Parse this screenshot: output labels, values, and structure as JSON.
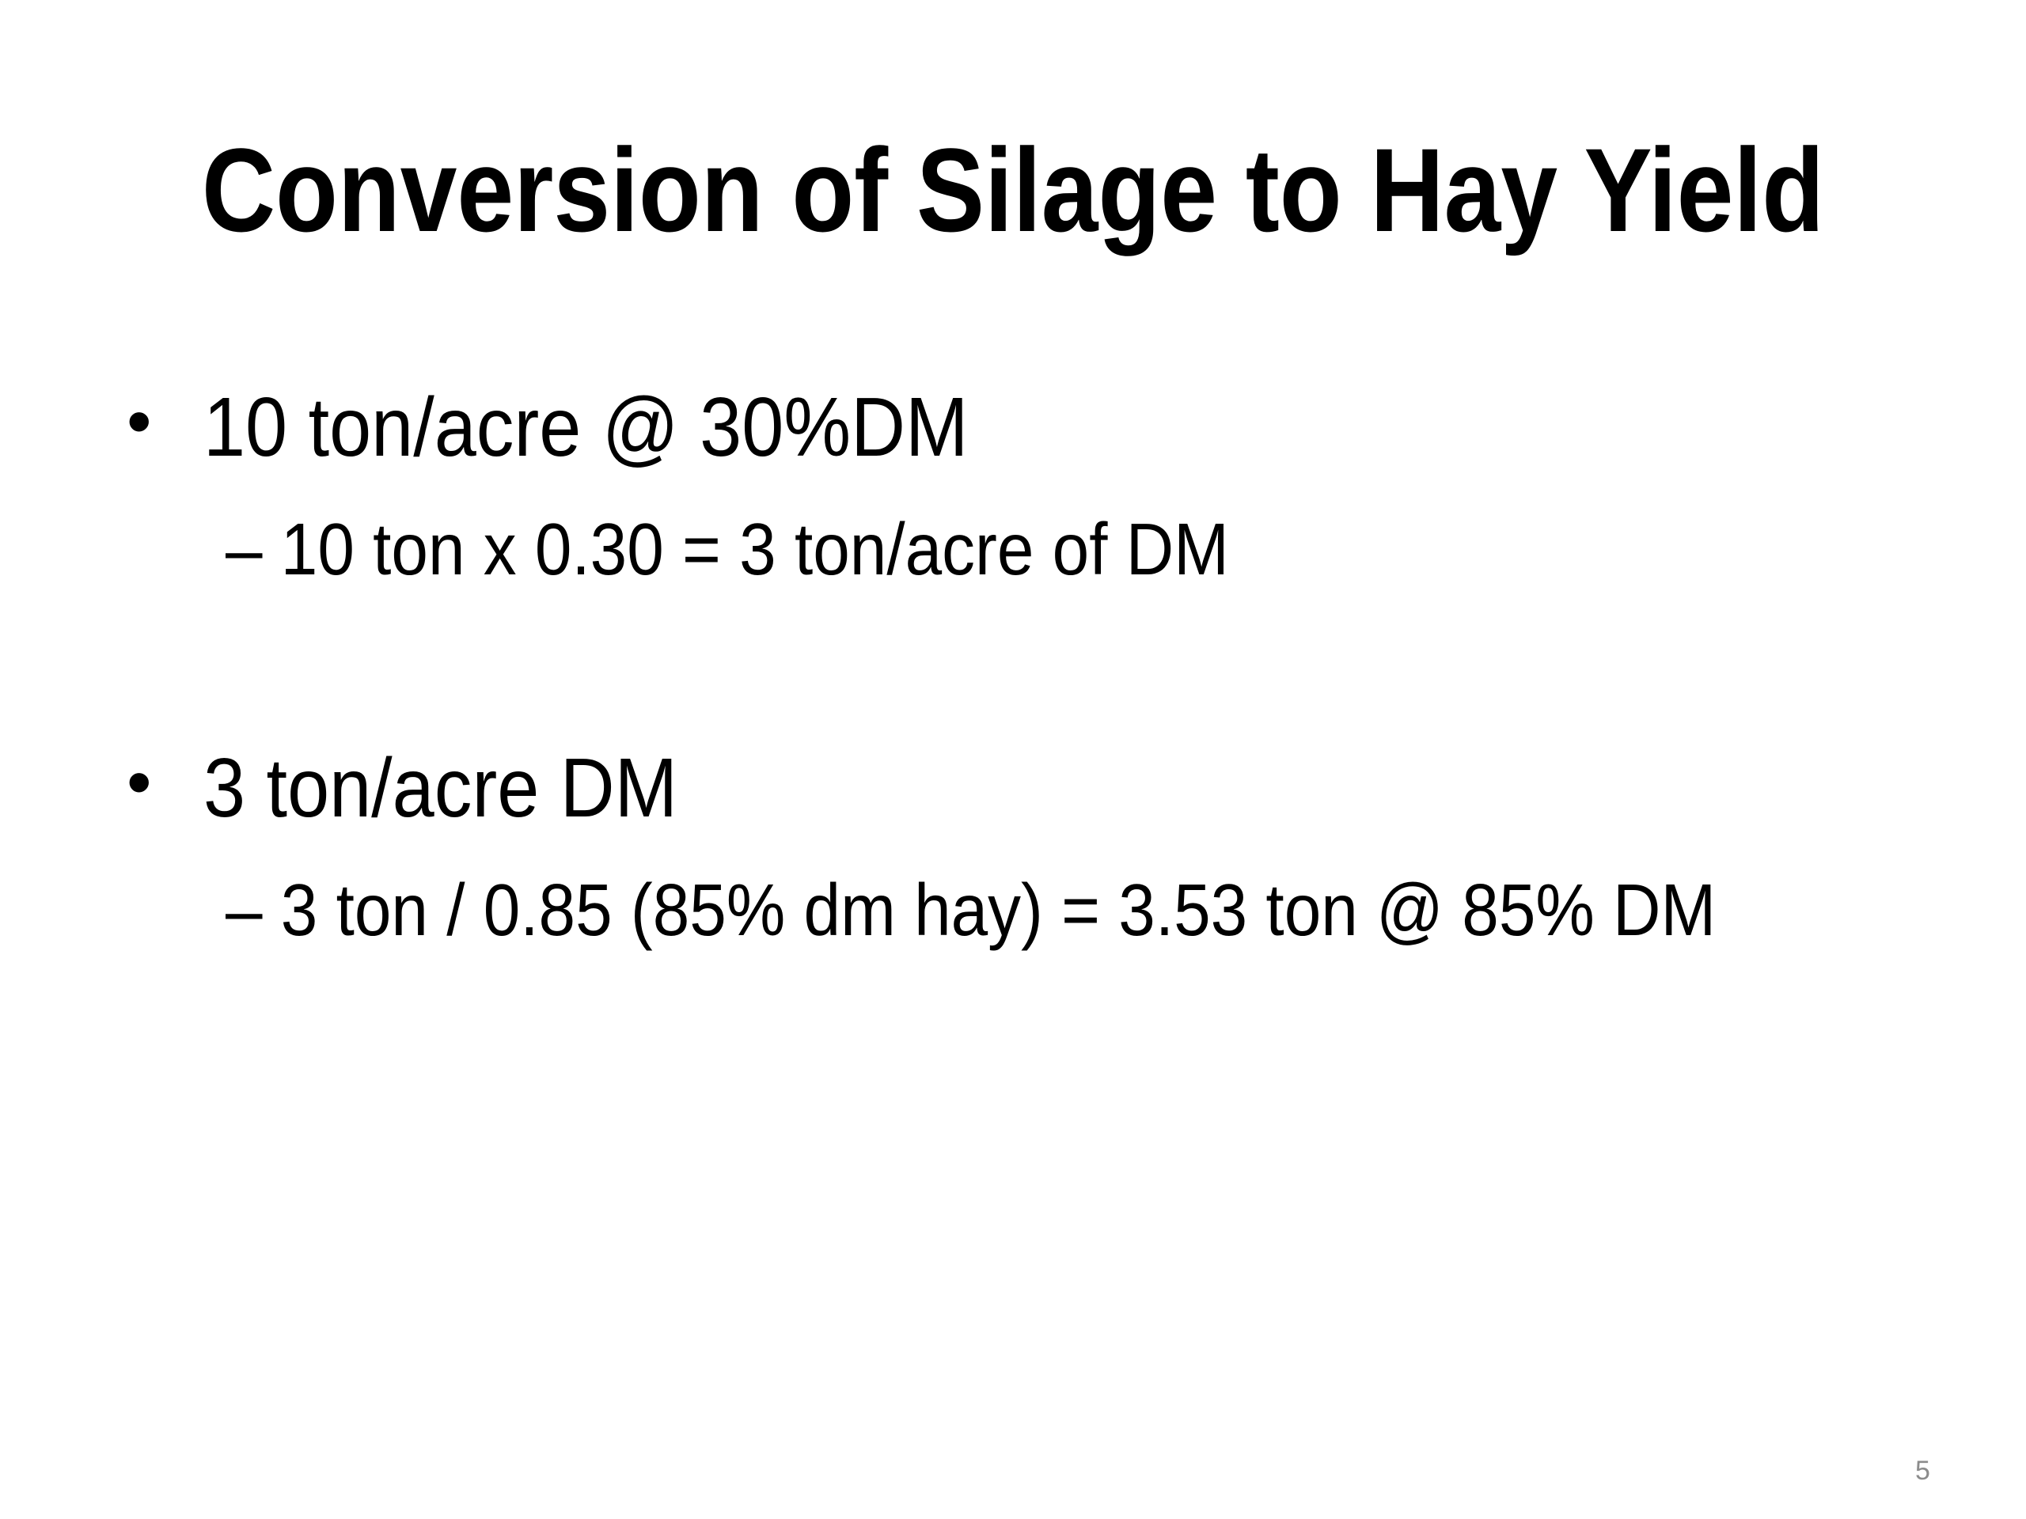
{
  "slide": {
    "title": "Conversion of Silage to Hay Yield",
    "bullets": [
      {
        "marker": "•",
        "text": "10 ton/acre @ 30%DM",
        "sub": [
          {
            "text": "– 10 ton x 0.30 = 3 ton/acre of DM"
          }
        ]
      },
      {
        "marker": "•",
        "text": "3 ton/acre DM",
        "sub": [
          {
            "text": "– 3 ton / 0.85 (85% dm hay) = 3.53 ton @ 85% DM"
          }
        ]
      }
    ],
    "page_number": "5"
  }
}
